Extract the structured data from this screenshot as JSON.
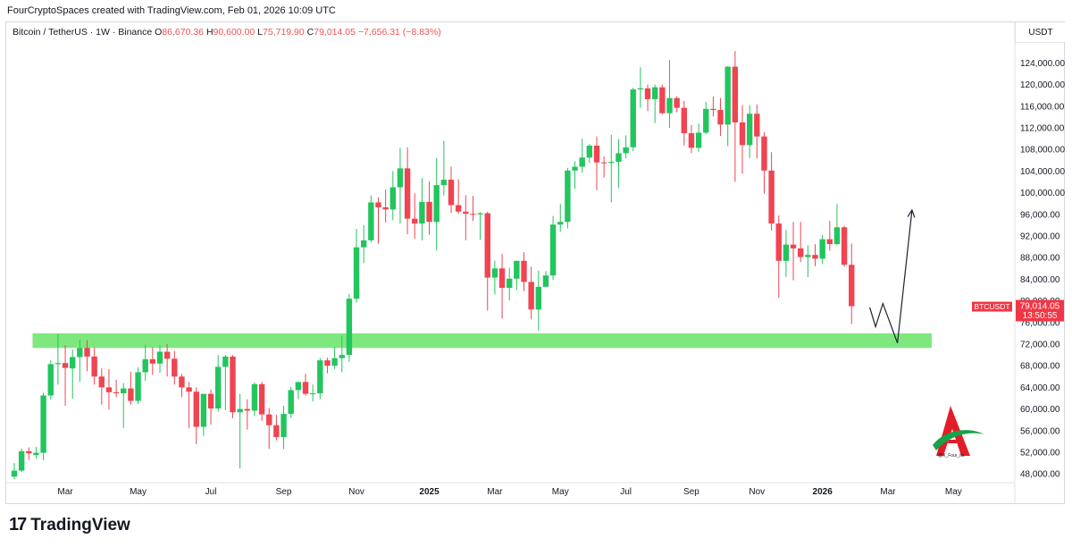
{
  "header": {
    "credit": "FourCryptoSpaces created with TradingView.com, Feb 01, 2026 10:09 UTC"
  },
  "symbol_bar": {
    "title": "Bitcoin / TetherUS · 1W · Binance",
    "o_label": "O",
    "o_value": "86,670.36",
    "h_label": "H",
    "h_value": "90,600.00",
    "l_label": "L",
    "l_value": "75,719.90",
    "c_label": "C",
    "c_value": "79,014.05",
    "change": "−7,656.31 (−8.83%)"
  },
  "currency": "USDT",
  "price_tag": {
    "symbol": "BTCUSDT",
    "price": "79,014.05",
    "countdown": "13:50:55"
  },
  "colors": {
    "up": "#22c55e",
    "down": "#ef4452",
    "zone": "#7ee87e",
    "tag": "#f23645"
  },
  "footer": {
    "brand": "TradingView"
  },
  "watermark": {
    "text": "@X_Four_its"
  },
  "chart_data": {
    "type": "candlestick",
    "timeframe": "1W",
    "y_axis": {
      "range": [
        46000,
        130000
      ],
      "ticks": [
        48000,
        52000,
        56000,
        60000,
        64000,
        68000,
        72000,
        76000,
        80000,
        84000,
        88000,
        92000,
        96000,
        100000,
        104000,
        108000,
        112000,
        116000,
        120000,
        124000
      ],
      "tick_labels": [
        "48,000.00",
        "52,000.00",
        "56,000.00",
        "60,000.00",
        "64,000.00",
        "68,000.00",
        "72,000.00",
        "76,000.00",
        "80,000.00",
        "84,000.00",
        "88,000.00",
        "92,000.00",
        "96,000.00",
        "100,000.00",
        "104,000.00",
        "108,000.00",
        "112,000.00",
        "116,000.00",
        "120,000.00",
        "124,000.00"
      ]
    },
    "x_axis": {
      "labels": [
        {
          "label": "Mar",
          "week": 7,
          "bold": false
        },
        {
          "label": "May",
          "week": 17,
          "bold": false
        },
        {
          "label": "Jul",
          "week": 27,
          "bold": false
        },
        {
          "label": "Sep",
          "week": 37,
          "bold": false
        },
        {
          "label": "Nov",
          "week": 47,
          "bold": false
        },
        {
          "label": "2025",
          "week": 57,
          "bold": true
        },
        {
          "label": "Mar",
          "week": 66,
          "bold": false
        },
        {
          "label": "May",
          "week": 75,
          "bold": false
        },
        {
          "label": "Jul",
          "week": 84,
          "bold": false
        },
        {
          "label": "Sep",
          "week": 93,
          "bold": false
        },
        {
          "label": "Nov",
          "week": 102,
          "bold": false
        },
        {
          "label": "2026",
          "week": 111,
          "bold": true
        },
        {
          "label": "Mar",
          "week": 120,
          "bold": false
        },
        {
          "label": "May",
          "week": 129,
          "bold": false
        }
      ]
    },
    "candles": [
      {
        "o": 47500,
        "h": 50000,
        "l": 47000,
        "c": 48600
      },
      {
        "o": 48600,
        "h": 52700,
        "l": 48300,
        "c": 52200
      },
      {
        "o": 52200,
        "h": 52900,
        "l": 50600,
        "c": 51800
      },
      {
        "o": 51500,
        "h": 53000,
        "l": 50800,
        "c": 51900
      },
      {
        "o": 51900,
        "h": 63000,
        "l": 50500,
        "c": 62500
      },
      {
        "o": 62500,
        "h": 69000,
        "l": 61800,
        "c": 68300
      },
      {
        "o": 68300,
        "h": 73800,
        "l": 64500,
        "c": 68500
      },
      {
        "o": 68500,
        "h": 71800,
        "l": 60600,
        "c": 67600
      },
      {
        "o": 67500,
        "h": 71000,
        "l": 61900,
        "c": 69600
      },
      {
        "o": 69600,
        "h": 72800,
        "l": 65000,
        "c": 71300
      },
      {
        "o": 71300,
        "h": 72700,
        "l": 67000,
        "c": 69700
      },
      {
        "o": 69700,
        "h": 71400,
        "l": 64500,
        "c": 66000
      },
      {
        "o": 66000,
        "h": 67500,
        "l": 60800,
        "c": 64000
      },
      {
        "o": 64000,
        "h": 67400,
        "l": 59900,
        "c": 63100
      },
      {
        "o": 63100,
        "h": 65400,
        "l": 62200,
        "c": 62900
      },
      {
        "o": 62900,
        "h": 64800,
        "l": 56500,
        "c": 63800
      },
      {
        "o": 63800,
        "h": 66900,
        "l": 60800,
        "c": 61500
      },
      {
        "o": 61500,
        "h": 67700,
        "l": 60900,
        "c": 66800
      },
      {
        "o": 66800,
        "h": 71900,
        "l": 65200,
        "c": 69200
      },
      {
        "o": 69200,
        "h": 71400,
        "l": 66300,
        "c": 68400
      },
      {
        "o": 68400,
        "h": 71800,
        "l": 66700,
        "c": 70600
      },
      {
        "o": 70600,
        "h": 72000,
        "l": 66000,
        "c": 69300
      },
      {
        "o": 69300,
        "h": 70700,
        "l": 64500,
        "c": 66000
      },
      {
        "o": 66000,
        "h": 66500,
        "l": 62200,
        "c": 64000
      },
      {
        "o": 64000,
        "h": 65000,
        "l": 56500,
        "c": 63200
      },
      {
        "o": 63200,
        "h": 64000,
        "l": 53500,
        "c": 56700
      },
      {
        "o": 56700,
        "h": 62800,
        "l": 55000,
        "c": 62800
      },
      {
        "o": 62800,
        "h": 63600,
        "l": 57100,
        "c": 60100
      },
      {
        "o": 60100,
        "h": 70000,
        "l": 59500,
        "c": 67800
      },
      {
        "o": 67800,
        "h": 70000,
        "l": 59800,
        "c": 69700
      },
      {
        "o": 69700,
        "h": 70000,
        "l": 58300,
        "c": 59400
      },
      {
        "o": 59400,
        "h": 62800,
        "l": 49000,
        "c": 60000
      },
      {
        "o": 60000,
        "h": 61800,
        "l": 56200,
        "c": 59700
      },
      {
        "o": 59700,
        "h": 64900,
        "l": 58700,
        "c": 64600
      },
      {
        "o": 64600,
        "h": 65000,
        "l": 57800,
        "c": 59000
      },
      {
        "o": 59000,
        "h": 60200,
        "l": 52600,
        "c": 57000
      },
      {
        "o": 57000,
        "h": 58900,
        "l": 54200,
        "c": 54800
      },
      {
        "o": 54800,
        "h": 60600,
        "l": 52600,
        "c": 59100
      },
      {
        "o": 59100,
        "h": 64100,
        "l": 58400,
        "c": 63500
      },
      {
        "o": 63500,
        "h": 64800,
        "l": 61800,
        "c": 65000
      },
      {
        "o": 65000,
        "h": 66500,
        "l": 62500,
        "c": 62800
      },
      {
        "o": 62800,
        "h": 64500,
        "l": 61400,
        "c": 62900
      },
      {
        "o": 62900,
        "h": 69400,
        "l": 61800,
        "c": 69000
      },
      {
        "o": 69000,
        "h": 69500,
        "l": 66600,
        "c": 68000
      },
      {
        "o": 68000,
        "h": 71500,
        "l": 67400,
        "c": 69400
      },
      {
        "o": 69400,
        "h": 73600,
        "l": 66800,
        "c": 70000
      },
      {
        "o": 70000,
        "h": 81300,
        "l": 68700,
        "c": 80400
      },
      {
        "o": 80400,
        "h": 93300,
        "l": 79700,
        "c": 89900
      },
      {
        "o": 89900,
        "h": 94000,
        "l": 87000,
        "c": 91200
      },
      {
        "o": 91200,
        "h": 99500,
        "l": 90800,
        "c": 98200
      },
      {
        "o": 98200,
        "h": 99100,
        "l": 90600,
        "c": 97300
      },
      {
        "o": 97300,
        "h": 100600,
        "l": 94500,
        "c": 96900
      },
      {
        "o": 96900,
        "h": 104000,
        "l": 94900,
        "c": 101000
      },
      {
        "o": 101000,
        "h": 108300,
        "l": 94300,
        "c": 104500
      },
      {
        "o": 104500,
        "h": 108400,
        "l": 92300,
        "c": 95200
      },
      {
        "o": 95200,
        "h": 99900,
        "l": 91500,
        "c": 94300
      },
      {
        "o": 94300,
        "h": 102700,
        "l": 91200,
        "c": 98300
      },
      {
        "o": 98300,
        "h": 102100,
        "l": 92200,
        "c": 94600
      },
      {
        "o": 94600,
        "h": 106400,
        "l": 89300,
        "c": 101400
      },
      {
        "o": 101400,
        "h": 109600,
        "l": 99500,
        "c": 102400
      },
      {
        "o": 102400,
        "h": 104800,
        "l": 96200,
        "c": 97700
      },
      {
        "o": 97700,
        "h": 102500,
        "l": 96100,
        "c": 96500
      },
      {
        "o": 96500,
        "h": 99500,
        "l": 91200,
        "c": 96100
      },
      {
        "o": 96100,
        "h": 99400,
        "l": 94800,
        "c": 96000
      },
      {
        "o": 96000,
        "h": 96400,
        "l": 91300,
        "c": 96200
      },
      {
        "o": 96200,
        "h": 96500,
        "l": 78200,
        "c": 84300
      },
      {
        "o": 84300,
        "h": 87400,
        "l": 81200,
        "c": 86000
      },
      {
        "o": 86000,
        "h": 88700,
        "l": 76700,
        "c": 82400
      },
      {
        "o": 82400,
        "h": 86100,
        "l": 80100,
        "c": 84100
      },
      {
        "o": 84100,
        "h": 87400,
        "l": 82000,
        "c": 87400
      },
      {
        "o": 87400,
        "h": 89000,
        "l": 81800,
        "c": 83500
      },
      {
        "o": 83500,
        "h": 86300,
        "l": 76600,
        "c": 78400
      },
      {
        "o": 78400,
        "h": 85600,
        "l": 74500,
        "c": 82600
      },
      {
        "o": 82600,
        "h": 85500,
        "l": 83000,
        "c": 84700
      },
      {
        "o": 84700,
        "h": 95700,
        "l": 83900,
        "c": 94100
      },
      {
        "o": 94100,
        "h": 97900,
        "l": 92800,
        "c": 94600
      },
      {
        "o": 94600,
        "h": 104600,
        "l": 93400,
        "c": 104100
      },
      {
        "o": 104100,
        "h": 105800,
        "l": 100700,
        "c": 104800
      },
      {
        "o": 104800,
        "h": 110000,
        "l": 103700,
        "c": 106500
      },
      {
        "o": 106500,
        "h": 109000,
        "l": 105500,
        "c": 108700
      },
      {
        "o": 108700,
        "h": 110400,
        "l": 100500,
        "c": 105600
      },
      {
        "o": 105600,
        "h": 106700,
        "l": 102800,
        "c": 105500
      },
      {
        "o": 105500,
        "h": 110700,
        "l": 98200,
        "c": 105700
      },
      {
        "o": 105700,
        "h": 109900,
        "l": 100900,
        "c": 107300
      },
      {
        "o": 107300,
        "h": 110600,
        "l": 106400,
        "c": 108400
      },
      {
        "o": 108400,
        "h": 119400,
        "l": 107700,
        "c": 119100
      },
      {
        "o": 119100,
        "h": 123200,
        "l": 115700,
        "c": 119300
      },
      {
        "o": 119300,
        "h": 120000,
        "l": 115100,
        "c": 117300
      },
      {
        "o": 117300,
        "h": 120000,
        "l": 112900,
        "c": 119500
      },
      {
        "o": 119500,
        "h": 120000,
        "l": 114500,
        "c": 114700
      },
      {
        "o": 114700,
        "h": 124500,
        "l": 112000,
        "c": 117500
      },
      {
        "o": 117500,
        "h": 117800,
        "l": 114900,
        "c": 115700
      },
      {
        "o": 115700,
        "h": 117000,
        "l": 108700,
        "c": 111000
      },
      {
        "o": 111000,
        "h": 112500,
        "l": 107300,
        "c": 108300
      },
      {
        "o": 108300,
        "h": 112800,
        "l": 107600,
        "c": 111100
      },
      {
        "o": 111100,
        "h": 116800,
        "l": 110800,
        "c": 115500
      },
      {
        "o": 115500,
        "h": 117800,
        "l": 114100,
        "c": 115300
      },
      {
        "o": 115300,
        "h": 117500,
        "l": 110500,
        "c": 112600
      },
      {
        "o": 112600,
        "h": 123400,
        "l": 108600,
        "c": 123300
      },
      {
        "o": 123300,
        "h": 126200,
        "l": 102000,
        "c": 113000
      },
      {
        "o": 113000,
        "h": 116200,
        "l": 103500,
        "c": 108800
      },
      {
        "o": 108800,
        "h": 116200,
        "l": 106400,
        "c": 114600
      },
      {
        "o": 114600,
        "h": 116300,
        "l": 106300,
        "c": 110400
      },
      {
        "o": 110400,
        "h": 111200,
        "l": 99800,
        "c": 104100
      },
      {
        "o": 104100,
        "h": 107500,
        "l": 93000,
        "c": 94300
      },
      {
        "o": 94300,
        "h": 95800,
        "l": 80600,
        "c": 87400
      },
      {
        "o": 87400,
        "h": 93100,
        "l": 84400,
        "c": 90400
      },
      {
        "o": 90400,
        "h": 94600,
        "l": 83800,
        "c": 89700
      },
      {
        "o": 89700,
        "h": 94600,
        "l": 87200,
        "c": 88100
      },
      {
        "o": 88100,
        "h": 90300,
        "l": 84400,
        "c": 88500
      },
      {
        "o": 88500,
        "h": 90500,
        "l": 86400,
        "c": 87800
      },
      {
        "o": 87800,
        "h": 92200,
        "l": 86800,
        "c": 91400
      },
      {
        "o": 91400,
        "h": 94800,
        "l": 89300,
        "c": 90500
      },
      {
        "o": 90500,
        "h": 97900,
        "l": 90300,
        "c": 93600
      },
      {
        "o": 93600,
        "h": 93900,
        "l": 86300,
        "c": 86670
      },
      {
        "o": 86670.36,
        "h": 90600,
        "l": 75719.9,
        "c": 79014.05
      }
    ],
    "support_zone": {
      "from": 71300,
      "to": 74000,
      "week_start": 3,
      "week_end": 126
    },
    "projection_path": [
      {
        "week": 117.5,
        "price": 78800
      },
      {
        "week": 118.3,
        "price": 75200
      },
      {
        "week": 119.3,
        "price": 79500
      },
      {
        "week": 121.3,
        "price": 72200
      },
      {
        "week": 123.3,
        "price": 96800
      }
    ]
  }
}
